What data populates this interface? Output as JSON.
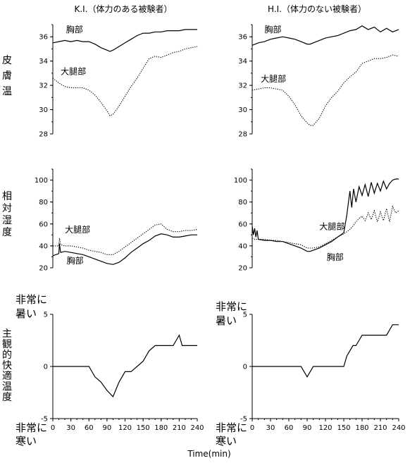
{
  "figure": {
    "col_titles": [
      "K.I.（体力のある被験者）",
      "H.I.（体力のない被験者）"
    ],
    "row_labels": {
      "skin": [
        "皮",
        "膚",
        "温"
      ],
      "humidity": [
        "相",
        "対",
        "湿",
        "度"
      ],
      "comfort": [
        "主",
        "観",
        "的",
        "快",
        "適",
        "温",
        "度"
      ]
    },
    "hot_label": [
      "非常に",
      "暑い"
    ],
    "cold_label": [
      "非常に",
      "寒い"
    ],
    "x_label": "Time(min)"
  },
  "chart_data": [
    {
      "type": "line",
      "panel": "skin-ki",
      "xlim": [
        0,
        240
      ],
      "ylim": [
        28,
        37
      ],
      "yticks": [
        28,
        30,
        32,
        34,
        36
      ],
      "grid": false,
      "series": [
        {
          "name": "胸部",
          "style": "solid",
          "x": [
            0,
            10,
            20,
            30,
            40,
            50,
            60,
            70,
            80,
            90,
            95,
            100,
            110,
            120,
            130,
            140,
            150,
            160,
            170,
            180,
            190,
            200,
            210,
            220,
            230,
            240
          ],
          "y": [
            35.5,
            35.6,
            35.7,
            35.6,
            35.7,
            35.6,
            35.6,
            35.4,
            35.1,
            34.9,
            34.8,
            34.9,
            35.2,
            35.5,
            35.8,
            36.1,
            36.3,
            36.3,
            36.4,
            36.4,
            36.5,
            36.5,
            36.5,
            36.6,
            36.6,
            36.6
          ]
        },
        {
          "name": "大腿部",
          "style": "dotted",
          "x": [
            0,
            10,
            20,
            30,
            40,
            50,
            60,
            70,
            80,
            90,
            95,
            100,
            110,
            120,
            130,
            140,
            150,
            160,
            170,
            180,
            190,
            200,
            210,
            220,
            230,
            240
          ],
          "y": [
            32.6,
            32.2,
            31.9,
            31.8,
            31.8,
            31.8,
            31.6,
            31.2,
            30.6,
            29.9,
            29.5,
            29.6,
            30.3,
            31.1,
            31.9,
            32.6,
            33.4,
            34.2,
            34.4,
            34.3,
            34.5,
            34.7,
            34.8,
            35.0,
            35.1,
            35.2
          ]
        }
      ],
      "labels": [
        "胸部",
        "大腿部"
      ]
    },
    {
      "type": "line",
      "panel": "skin-hi",
      "xlim": [
        0,
        240
      ],
      "ylim": [
        28,
        37
      ],
      "yticks": [
        28,
        30,
        32,
        34,
        36
      ],
      "grid": false,
      "series": [
        {
          "name": "胸部",
          "style": "solid",
          "x": [
            0,
            10,
            20,
            30,
            40,
            50,
            60,
            70,
            80,
            90,
            95,
            100,
            110,
            120,
            130,
            140,
            150,
            160,
            170,
            180,
            190,
            200,
            210,
            220,
            230,
            240
          ],
          "y": [
            35.3,
            35.5,
            35.6,
            35.8,
            35.9,
            36.0,
            35.9,
            35.8,
            35.6,
            35.4,
            35.4,
            35.5,
            35.7,
            35.9,
            36.0,
            36.1,
            36.3,
            36.5,
            36.6,
            36.9,
            36.6,
            36.8,
            36.4,
            36.7,
            36.4,
            36.6
          ]
        },
        {
          "name": "大腿部",
          "style": "dotted",
          "x": [
            0,
            10,
            20,
            30,
            40,
            50,
            60,
            70,
            80,
            90,
            95,
            100,
            110,
            120,
            130,
            140,
            150,
            160,
            170,
            180,
            190,
            200,
            210,
            220,
            230,
            240
          ],
          "y": [
            31.6,
            31.7,
            31.8,
            31.8,
            31.7,
            31.6,
            31.1,
            30.4,
            29.5,
            28.9,
            28.7,
            28.7,
            29.3,
            30.3,
            31.0,
            31.5,
            32.2,
            32.7,
            33.1,
            33.8,
            34.0,
            34.2,
            34.2,
            34.3,
            34.5,
            34.4
          ]
        }
      ],
      "labels": [
        "胸部",
        "大腿部"
      ]
    },
    {
      "type": "line",
      "panel": "humidity-ki",
      "xlim": [
        0,
        240
      ],
      "ylim": [
        20,
        110
      ],
      "yticks": [
        20,
        40,
        60,
        80,
        100
      ],
      "grid": false,
      "series": [
        {
          "name": "大腿部",
          "style": "dotted",
          "x": [
            0,
            10,
            11,
            13,
            20,
            30,
            40,
            50,
            60,
            70,
            80,
            90,
            100,
            110,
            120,
            130,
            140,
            150,
            160,
            170,
            180,
            190,
            200,
            210,
            220,
            230,
            240
          ],
          "y": [
            40,
            40,
            47,
            41,
            40,
            40,
            39,
            38,
            36,
            35,
            34,
            32,
            32,
            35,
            39,
            43,
            47,
            51,
            55,
            59,
            60,
            55,
            53,
            53,
            54,
            54,
            55
          ]
        },
        {
          "name": "胸部",
          "style": "solid",
          "x": [
            0,
            10,
            11,
            13,
            20,
            30,
            40,
            50,
            60,
            70,
            80,
            90,
            100,
            110,
            120,
            130,
            140,
            150,
            160,
            170,
            180,
            190,
            200,
            210,
            220,
            230,
            240
          ],
          "y": [
            31,
            33,
            42,
            34,
            35,
            34,
            33,
            32,
            30,
            28,
            26,
            24,
            23,
            25,
            29,
            34,
            38,
            42,
            45,
            49,
            51,
            50,
            48,
            48,
            49,
            50,
            50
          ]
        }
      ],
      "labels": [
        "大腿部",
        "胸部"
      ]
    },
    {
      "type": "line",
      "panel": "humidity-hi",
      "xlim": [
        0,
        240
      ],
      "ylim": [
        20,
        110
      ],
      "yticks": [
        20,
        40,
        60,
        80,
        100
      ],
      "grid": false,
      "series": [
        {
          "name": "大腿部",
          "style": "dotted",
          "x": [
            0,
            5,
            10,
            20,
            30,
            40,
            50,
            60,
            70,
            80,
            90,
            95,
            100,
            110,
            120,
            130,
            140,
            150,
            160,
            165,
            170,
            175,
            180,
            185,
            190,
            195,
            200,
            205,
            210,
            215,
            220,
            225,
            230,
            235,
            240
          ],
          "y": [
            47,
            46,
            46,
            46,
            45,
            45,
            44,
            43,
            42,
            41,
            38,
            38,
            38,
            39,
            42,
            45,
            48,
            51,
            55,
            58,
            62,
            65,
            67,
            63,
            70,
            64,
            72,
            62,
            71,
            63,
            74,
            62,
            76,
            70,
            72
          ]
        },
        {
          "name": "胸部",
          "style": "solid",
          "x": [
            0,
            2,
            4,
            6,
            8,
            10,
            20,
            30,
            40,
            50,
            60,
            70,
            80,
            90,
            95,
            100,
            110,
            120,
            130,
            140,
            150,
            155,
            160,
            163,
            166,
            170,
            175,
            180,
            185,
            190,
            195,
            200,
            205,
            210,
            215,
            220,
            225,
            230,
            235,
            240
          ],
          "y": [
            58,
            50,
            56,
            48,
            54,
            46,
            45,
            45,
            44,
            44,
            42,
            40,
            38,
            35,
            35,
            36,
            38,
            41,
            44,
            48,
            52,
            68,
            90,
            75,
            92,
            80,
            94,
            86,
            96,
            85,
            98,
            88,
            97,
            90,
            99,
            92,
            97,
            100,
            101,
            101
          ]
        }
      ],
      "labels": [
        "大腿部",
        "胸部"
      ]
    },
    {
      "type": "line",
      "panel": "comfort-ki",
      "xlim": [
        0,
        240
      ],
      "ylim": [
        -5,
        5
      ],
      "yticks": [
        -5,
        0,
        5
      ],
      "xticks": [
        0,
        30,
        60,
        90,
        120,
        150,
        180,
        210,
        240
      ],
      "grid": false,
      "series": [
        {
          "style": "solid",
          "x": [
            0,
            60,
            70,
            80,
            90,
            100,
            110,
            120,
            130,
            140,
            150,
            160,
            170,
            180,
            190,
            200,
            205,
            210,
            215,
            220,
            230,
            240
          ],
          "y": [
            0,
            0,
            -1,
            -1.5,
            -2.3,
            -2.9,
            -1.5,
            -0.5,
            -0.5,
            0,
            0.5,
            1.5,
            2,
            2,
            2,
            2,
            2.5,
            3,
            2,
            2,
            2,
            2
          ]
        }
      ]
    },
    {
      "type": "line",
      "panel": "comfort-hi",
      "xlim": [
        0,
        240
      ],
      "ylim": [
        -5,
        5
      ],
      "yticks": [
        -5,
        0,
        5
      ],
      "xticks": [
        0,
        30,
        60,
        90,
        120,
        150,
        180,
        210,
        240
      ],
      "grid": false,
      "series": [
        {
          "style": "solid",
          "x": [
            0,
            80,
            85,
            90,
            95,
            100,
            150,
            155,
            165,
            170,
            175,
            180,
            190,
            200,
            210,
            220,
            225,
            230,
            240
          ],
          "y": [
            0,
            0,
            -0.5,
            -1,
            -0.5,
            0,
            0,
            1,
            2,
            2,
            2.5,
            3,
            3,
            3,
            3,
            3,
            3.5,
            4,
            4
          ]
        }
      ]
    }
  ]
}
